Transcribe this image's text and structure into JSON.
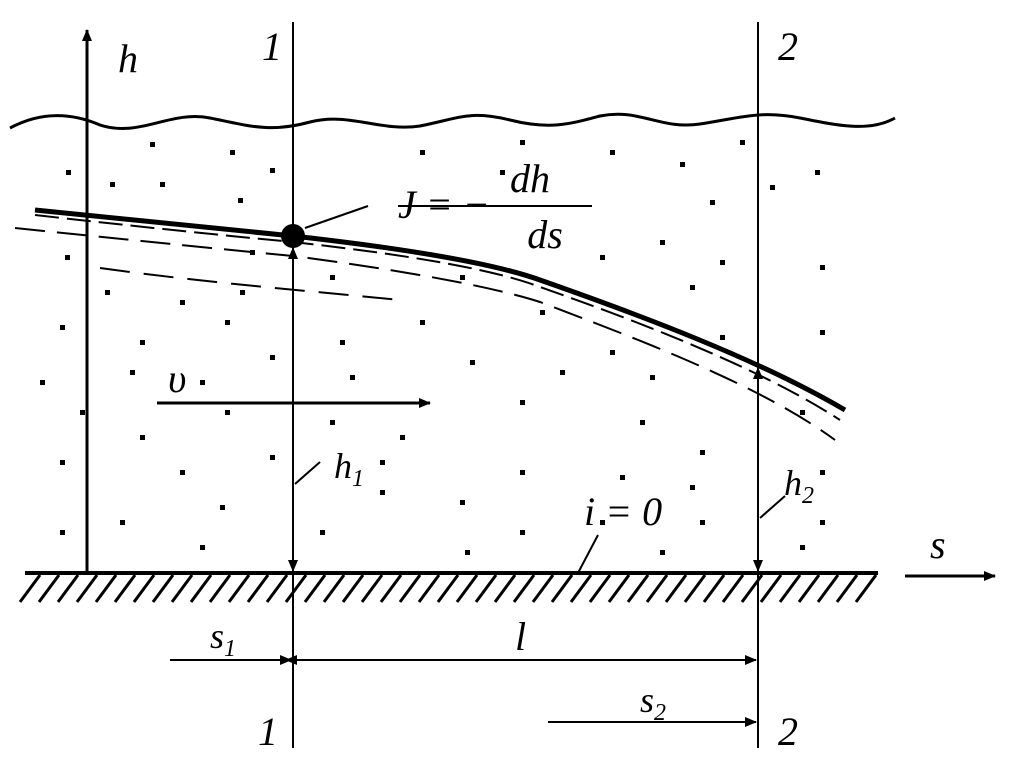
{
  "labels": {
    "h_axis": "h",
    "section_top_1": "1",
    "section_top_2": "2",
    "gradient": {
      "lhs": "J = −",
      "numerator": "dh",
      "denominator": "ds"
    },
    "velocity": "υ",
    "h1": {
      "base": "h",
      "sub": "1"
    },
    "h2": {
      "base": "h",
      "sub": "2"
    },
    "slope": "i = 0",
    "s_axis": "s",
    "s1": {
      "base": "s",
      "sub": "1"
    },
    "length": "l",
    "s2": {
      "base": "s",
      "sub": "2"
    },
    "section_bottom_1": "1",
    "section_bottom_2": "2"
  }
}
